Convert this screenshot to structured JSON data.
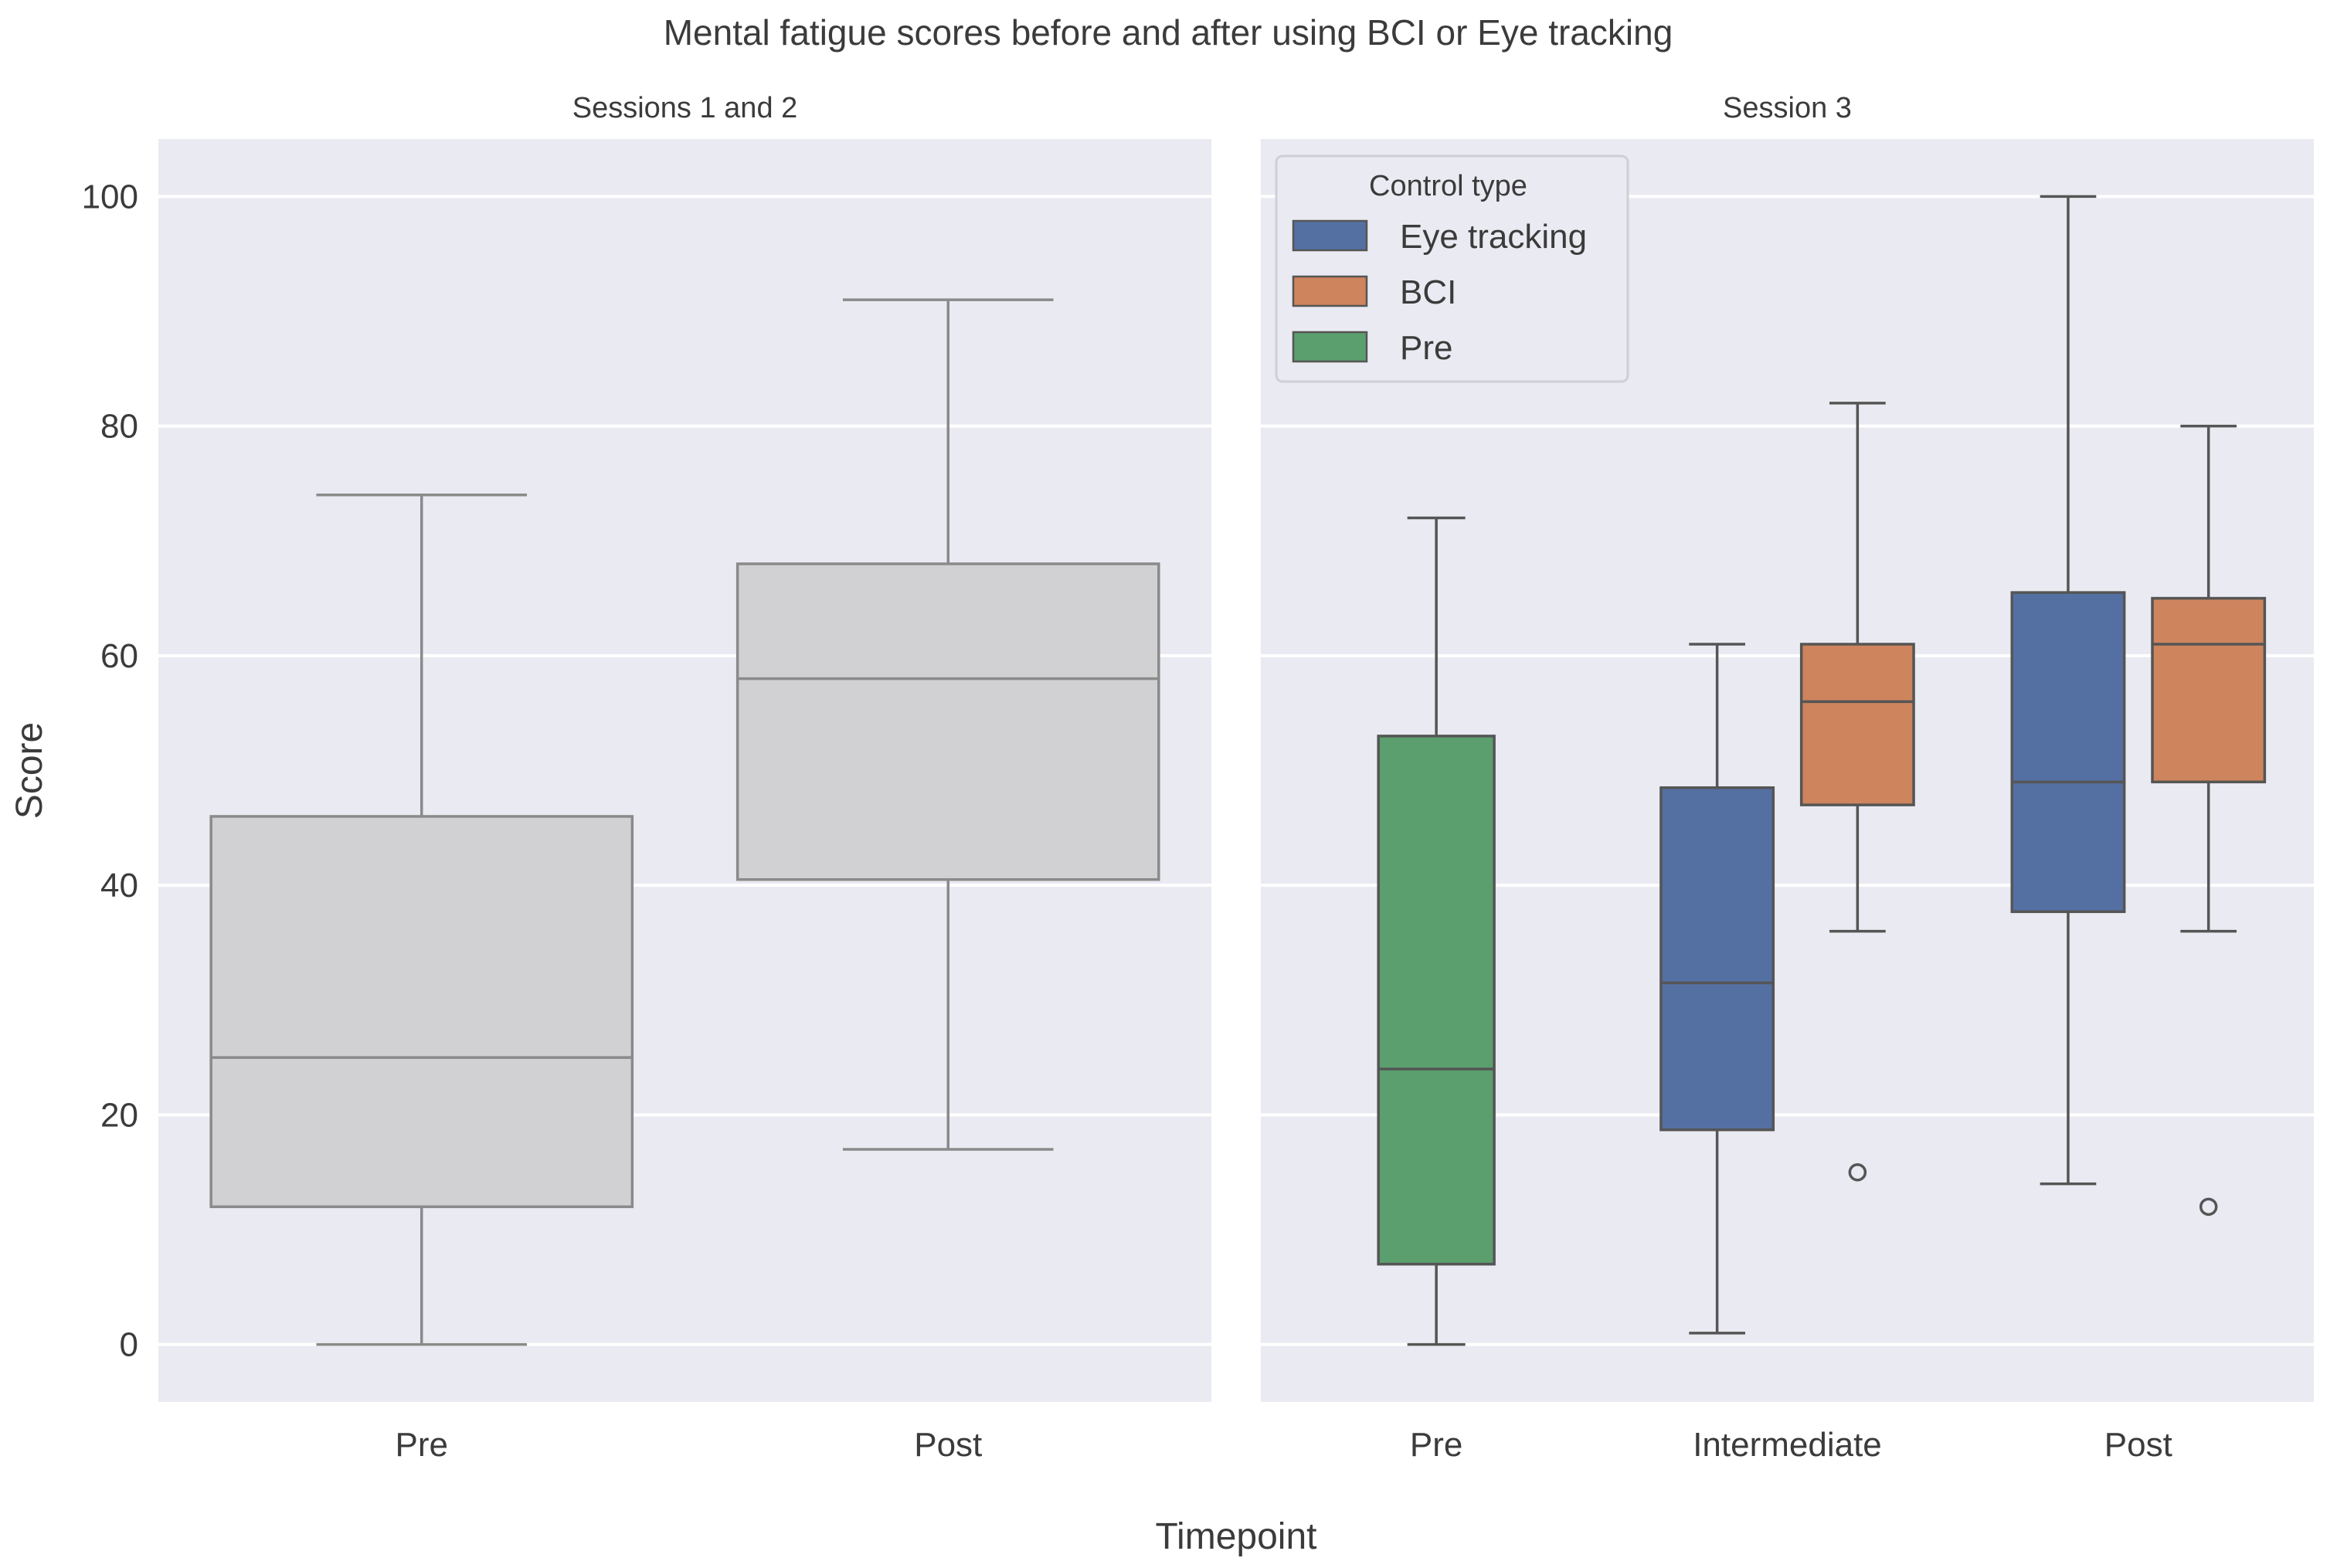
{
  "chart_data": {
    "type": "boxplot",
    "title": "Mental fatigue scores before and after using BCI or Eye tracking",
    "xlabel": "Timepoint",
    "ylabel": "Score",
    "ylim": [
      -5,
      105
    ],
    "yticks": [
      0,
      20,
      40,
      60,
      80,
      100
    ],
    "grid": true,
    "colors": {
      "background": "#EAEAF2",
      "grid": "#FFFFFF",
      "neutral_box": "#D1D1D4",
      "neutral_line": "#8A8A8A",
      "colored_line": "#555555",
      "Eye tracking": "#5470A3",
      "BCI": "#CE845D",
      "Pre": "#5B9F6E"
    },
    "panels": [
      {
        "title": "Sessions 1 and 2",
        "categories": [
          "Pre",
          "Post"
        ],
        "boxes": [
          {
            "category": "Pre",
            "group": null,
            "whisker_low": 0,
            "q1": 12,
            "median": 25,
            "q3": 46,
            "whisker_high": 74,
            "outliers": []
          },
          {
            "category": "Post",
            "group": null,
            "whisker_low": 17,
            "q1": 40.5,
            "median": 58,
            "q3": 68,
            "whisker_high": 91,
            "outliers": []
          }
        ]
      },
      {
        "title": "Session 3",
        "categories": [
          "Pre",
          "Intermediate",
          "Post"
        ],
        "legend": {
          "title": "Control type",
          "entries": [
            "Eye tracking",
            "BCI",
            "Pre"
          ],
          "placement": "top-left"
        },
        "boxes": [
          {
            "category": "Pre",
            "group": "Pre",
            "whisker_low": 0,
            "q1": 7,
            "median": 24,
            "q3": 53,
            "whisker_high": 72,
            "outliers": []
          },
          {
            "category": "Intermediate",
            "group": "Eye tracking",
            "whisker_low": 1,
            "q1": 18.7,
            "median": 31.5,
            "q3": 48.5,
            "whisker_high": 61,
            "outliers": []
          },
          {
            "category": "Intermediate",
            "group": "BCI",
            "whisker_low": 36,
            "q1": 47,
            "median": 56,
            "q3": 61,
            "whisker_high": 82,
            "outliers": [
              15
            ]
          },
          {
            "category": "Post",
            "group": "Eye tracking",
            "whisker_low": 14,
            "q1": 37.7,
            "median": 49,
            "q3": 65.5,
            "whisker_high": 100,
            "outliers": []
          },
          {
            "category": "Post",
            "group": "BCI",
            "whisker_low": 36,
            "q1": 49,
            "median": 61,
            "q3": 65,
            "whisker_high": 80,
            "outliers": [
              12
            ]
          }
        ]
      }
    ]
  }
}
